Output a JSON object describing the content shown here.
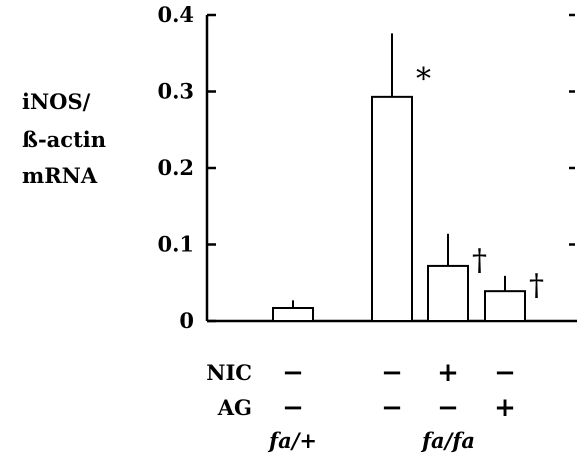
{
  "chart_data": {
    "type": "bar",
    "ylabel_lines": [
      "iNOS/",
      "ß-actin",
      "mRNA"
    ],
    "ylim": [
      0,
      0.4
    ],
    "yticks": [
      "0",
      "0.1",
      "0.2",
      "0.3",
      "0.4"
    ],
    "ytick_values": [
      0,
      0.1,
      0.2,
      0.3,
      0.4
    ],
    "bars": [
      {
        "value": 0.017,
        "error": 0.01,
        "annotation": ""
      },
      {
        "value": 0.293,
        "error": 0.083,
        "annotation": "*"
      },
      {
        "value": 0.072,
        "error": 0.042,
        "annotation": "†"
      },
      {
        "value": 0.039,
        "error": 0.02,
        "annotation": "†"
      }
    ],
    "treatment_rows": [
      {
        "label": "NIC",
        "signs": [
          "−",
          "−",
          "+",
          "−"
        ]
      },
      {
        "label": "AG",
        "signs": [
          "−",
          "−",
          "−",
          "+"
        ]
      }
    ],
    "groups": [
      {
        "label": "fa/+",
        "bar_indices": [
          0
        ]
      },
      {
        "label": "fa/fa",
        "bar_indices": [
          1,
          2,
          3
        ]
      }
    ]
  }
}
